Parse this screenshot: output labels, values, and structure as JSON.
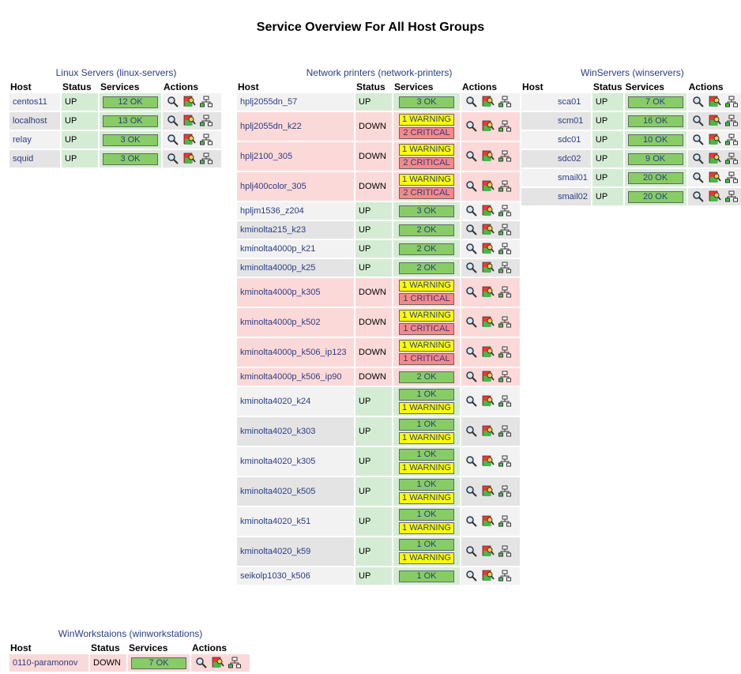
{
  "page": {
    "title": "Service Overview For All Host Groups"
  },
  "columns": {
    "host": "Host",
    "status": "Status",
    "services": "Services",
    "actions": "Actions"
  },
  "groups": {
    "linux": {
      "name": "Linux Servers",
      "alias": "(linux-servers)",
      "hosts": [
        {
          "host": "centos11",
          "status": "UP",
          "services": [
            "12 OK"
          ]
        },
        {
          "host": "localhost",
          "status": "UP",
          "services": [
            "13 OK"
          ]
        },
        {
          "host": "relay",
          "status": "UP",
          "services": [
            "3 OK"
          ]
        },
        {
          "host": "squid",
          "status": "UP",
          "services": [
            "3 OK"
          ]
        }
      ]
    },
    "printers": {
      "name": "Network printers",
      "alias": "(network-printers)",
      "hosts": [
        {
          "host": "hplj2055dn_57",
          "status": "UP",
          "services": [
            "3 OK"
          ]
        },
        {
          "host": "hplj2055dn_k22",
          "status": "DOWN",
          "services": [
            "1 WARNING",
            "2 CRITICAL"
          ]
        },
        {
          "host": "hplj2100_305",
          "status": "DOWN",
          "services": [
            "1 WARNING",
            "2 CRITICAL"
          ]
        },
        {
          "host": "hplj400color_305",
          "status": "DOWN",
          "services": [
            "1 WARNING",
            "2 CRITICAL"
          ]
        },
        {
          "host": "hpljm1536_z204",
          "status": "UP",
          "services": [
            "3 OK"
          ]
        },
        {
          "host": "kminolta215_k23",
          "status": "UP",
          "services": [
            "2 OK"
          ]
        },
        {
          "host": "kminolta4000p_k21",
          "status": "UP",
          "services": [
            "2 OK"
          ]
        },
        {
          "host": "kminolta4000p_k25",
          "status": "UP",
          "services": [
            "2 OK"
          ]
        },
        {
          "host": "kminolta4000p_k305",
          "status": "DOWN",
          "services": [
            "1 WARNING",
            "1 CRITICAL"
          ]
        },
        {
          "host": "kminolta4000p_k502",
          "status": "DOWN",
          "services": [
            "1 WARNING",
            "1 CRITICAL"
          ]
        },
        {
          "host": "kminolta4000p_k506_ip123",
          "status": "DOWN",
          "services": [
            "1 WARNING",
            "1 CRITICAL"
          ]
        },
        {
          "host": "kminolta4000p_k506_ip90",
          "status": "DOWN",
          "services": [
            "2 OK"
          ]
        },
        {
          "host": "kminolta4020_k24",
          "status": "UP",
          "services": [
            "1 OK",
            "1 WARNING"
          ]
        },
        {
          "host": "kminolta4020_k303",
          "status": "UP",
          "services": [
            "1 OK",
            "1 WARNING"
          ]
        },
        {
          "host": "kminolta4020_k305",
          "status": "UP",
          "services": [
            "1 OK",
            "1 WARNING"
          ]
        },
        {
          "host": "kminolta4020_k505",
          "status": "UP",
          "services": [
            "1 OK",
            "1 WARNING"
          ]
        },
        {
          "host": "kminolta4020_k51",
          "status": "UP",
          "services": [
            "1 OK",
            "1 WARNING"
          ]
        },
        {
          "host": "kminolta4020_k59",
          "status": "UP",
          "services": [
            "1 OK",
            "1 WARNING"
          ]
        },
        {
          "host": "seikolp1030_k506",
          "status": "UP",
          "services": [
            "1 OK"
          ]
        }
      ]
    },
    "win": {
      "name": "WinServers",
      "alias": "(winservers)",
      "hosts": [
        {
          "host": "sca01",
          "status": "UP",
          "services": [
            "7 OK"
          ]
        },
        {
          "host": "scm01",
          "status": "UP",
          "services": [
            "16 OK"
          ]
        },
        {
          "host": "sdc01",
          "status": "UP",
          "services": [
            "10 OK"
          ]
        },
        {
          "host": "sdc02",
          "status": "UP",
          "services": [
            "9 OK"
          ]
        },
        {
          "host": "smail01",
          "status": "UP",
          "services": [
            "20 OK"
          ]
        },
        {
          "host": "smail02",
          "status": "UP",
          "services": [
            "20 OK"
          ]
        }
      ]
    },
    "workstations": {
      "name": "WinWorkstaions",
      "alias": "(winworkstations)",
      "hosts": [
        {
          "host": "0110-paramonov",
          "status": "DOWN",
          "services": [
            "7 OK"
          ]
        }
      ]
    }
  },
  "icons": {
    "details": "magnifier-icon",
    "services": "service-detail-icon",
    "map": "status-map-icon"
  },
  "colors": {
    "ok": "#88cc66",
    "warning": "#ffff00",
    "critical": "#f88888",
    "up_bg": "#d4ecd4",
    "down_bg": "#fcd9d9",
    "link": "#2b3d84"
  }
}
